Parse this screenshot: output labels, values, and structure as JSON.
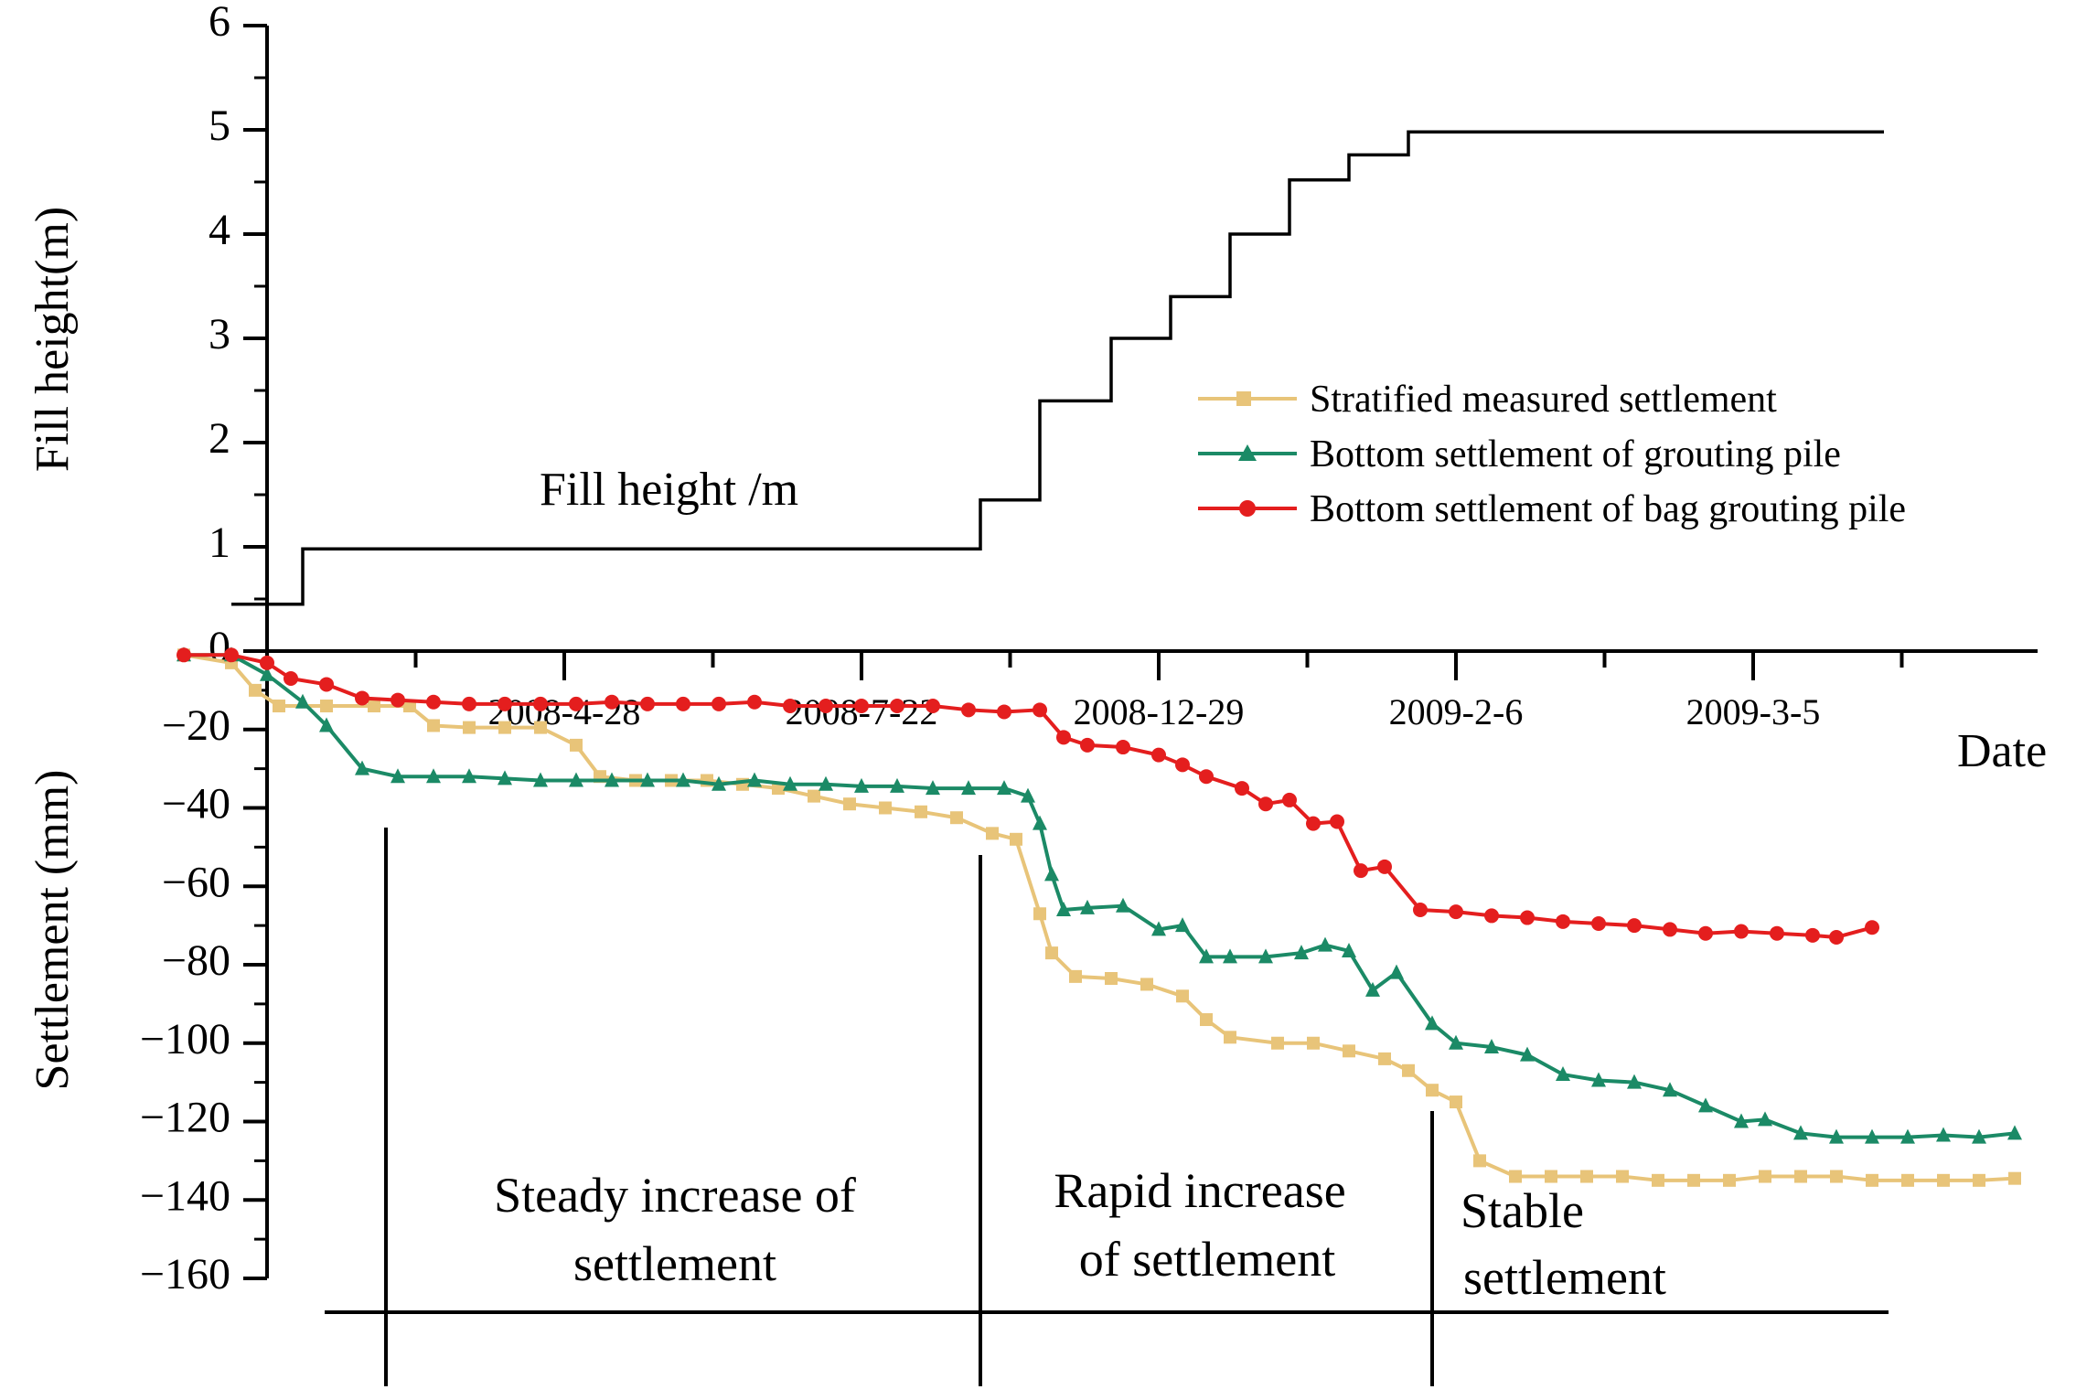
{
  "chart_data": [
    {
      "type": "line",
      "id": "fill",
      "title": "",
      "ylabel": "Fill height(m)",
      "annotation": "Fill height /m",
      "ylim": [
        0,
        6
      ],
      "yticks": [
        "0",
        "1",
        "2",
        "3",
        "4",
        "5",
        "6"
      ],
      "series": [
        {
          "name": "Fill height /m",
          "color": "#000000",
          "step": true,
          "points": [
            [
              -0.03,
              0.45
            ],
            [
              0.03,
              0.45
            ],
            [
              0.03,
              0.98
            ],
            [
              0.6,
              0.98
            ],
            [
              0.6,
              1.45
            ],
            [
              0.65,
              1.45
            ],
            [
              0.65,
              2.4
            ],
            [
              0.71,
              2.4
            ],
            [
              0.71,
              3.0
            ],
            [
              0.76,
              3.0
            ],
            [
              0.76,
              3.4
            ],
            [
              0.81,
              3.4
            ],
            [
              0.81,
              4.0
            ],
            [
              0.86,
              4.0
            ],
            [
              0.86,
              4.52
            ],
            [
              0.91,
              4.52
            ],
            [
              0.91,
              4.76
            ],
            [
              0.96,
              4.76
            ],
            [
              0.96,
              4.98
            ],
            [
              1.03,
              4.98
            ],
            [
              1.36,
              4.98
            ]
          ]
        }
      ]
    },
    {
      "type": "line",
      "id": "settlement",
      "title": "",
      "ylabel": "Settlement (mm)",
      "xlabel": "Date",
      "ylim": [
        -160,
        0
      ],
      "yticks": [
        "0",
        "−20",
        "−40",
        "−60",
        "−80",
        "−100",
        "−120",
        "−140",
        "−160"
      ],
      "xticks": [
        "2008-4-28",
        "2008-7-22",
        "2008-12-29",
        "2009-2-6",
        "2009-3-5"
      ],
      "xtick_positions": [
        0.25,
        0.5,
        0.75,
        1.0,
        1.25
      ],
      "legend": {
        "position": "top-right"
      },
      "series": [
        {
          "name": "Stratified measured settlement",
          "color": "#e8c479",
          "marker": "square",
          "points": [
            [
              -0.07,
              -1
            ],
            [
              -0.03,
              -3
            ],
            [
              -0.01,
              -10
            ],
            [
              0.01,
              -14
            ],
            [
              0.05,
              -14
            ],
            [
              0.09,
              -14
            ],
            [
              0.12,
              -14
            ],
            [
              0.14,
              -19
            ],
            [
              0.17,
              -19.5
            ],
            [
              0.2,
              -19.5
            ],
            [
              0.23,
              -19.5
            ],
            [
              0.26,
              -24
            ],
            [
              0.28,
              -32
            ],
            [
              0.31,
              -33
            ],
            [
              0.34,
              -33
            ],
            [
              0.37,
              -33
            ],
            [
              0.4,
              -34
            ],
            [
              0.43,
              -35
            ],
            [
              0.46,
              -37
            ],
            [
              0.49,
              -39
            ],
            [
              0.52,
              -40
            ],
            [
              0.55,
              -41
            ],
            [
              0.58,
              -42.5
            ],
            [
              0.61,
              -46.5
            ],
            [
              0.63,
              -48
            ],
            [
              0.65,
              -67
            ],
            [
              0.66,
              -77
            ],
            [
              0.68,
              -83
            ],
            [
              0.71,
              -83.5
            ],
            [
              0.74,
              -85
            ],
            [
              0.77,
              -88
            ],
            [
              0.79,
              -94
            ],
            [
              0.81,
              -98.5
            ],
            [
              0.85,
              -100
            ],
            [
              0.88,
              -100
            ],
            [
              0.91,
              -102
            ],
            [
              0.94,
              -104
            ],
            [
              0.96,
              -107
            ],
            [
              0.98,
              -112
            ],
            [
              1.0,
              -115
            ],
            [
              1.02,
              -130
            ],
            [
              1.05,
              -134
            ],
            [
              1.08,
              -134
            ],
            [
              1.11,
              -134
            ],
            [
              1.14,
              -134
            ],
            [
              1.17,
              -135
            ],
            [
              1.2,
              -135
            ],
            [
              1.23,
              -135
            ],
            [
              1.26,
              -134
            ],
            [
              1.29,
              -134
            ],
            [
              1.32,
              -134
            ],
            [
              1.35,
              -135
            ],
            [
              1.38,
              -135
            ],
            [
              1.41,
              -135
            ],
            [
              1.44,
              -135
            ],
            [
              1.47,
              -134.5
            ]
          ]
        },
        {
          "name": "Bottom settlement of grouting pile",
          "color": "#1b8a66",
          "marker": "triangle",
          "points": [
            [
              -0.07,
              -1
            ],
            [
              -0.03,
              -1
            ],
            [
              0.0,
              -6
            ],
            [
              0.03,
              -13
            ],
            [
              0.05,
              -19
            ],
            [
              0.08,
              -30
            ],
            [
              0.11,
              -32
            ],
            [
              0.14,
              -32
            ],
            [
              0.17,
              -32
            ],
            [
              0.2,
              -32.5
            ],
            [
              0.23,
              -33
            ],
            [
              0.26,
              -33
            ],
            [
              0.29,
              -33
            ],
            [
              0.32,
              -33
            ],
            [
              0.35,
              -33
            ],
            [
              0.38,
              -34
            ],
            [
              0.41,
              -33
            ],
            [
              0.44,
              -34
            ],
            [
              0.47,
              -34
            ],
            [
              0.5,
              -34.5
            ],
            [
              0.53,
              -34.5
            ],
            [
              0.56,
              -35
            ],
            [
              0.59,
              -35
            ],
            [
              0.62,
              -35
            ],
            [
              0.64,
              -37
            ],
            [
              0.65,
              -44
            ],
            [
              0.66,
              -57
            ],
            [
              0.67,
              -66
            ],
            [
              0.69,
              -65.5
            ],
            [
              0.72,
              -65
            ],
            [
              0.75,
              -71
            ],
            [
              0.77,
              -70
            ],
            [
              0.79,
              -78
            ],
            [
              0.81,
              -78
            ],
            [
              0.84,
              -78
            ],
            [
              0.87,
              -77
            ],
            [
              0.89,
              -75
            ],
            [
              0.91,
              -76.5
            ],
            [
              0.93,
              -86.5
            ],
            [
              0.95,
              -82
            ],
            [
              0.98,
              -95
            ],
            [
              1.0,
              -100
            ],
            [
              1.03,
              -101
            ],
            [
              1.06,
              -103
            ],
            [
              1.09,
              -108
            ],
            [
              1.12,
              -109.5
            ],
            [
              1.15,
              -110
            ],
            [
              1.18,
              -112
            ],
            [
              1.21,
              -116
            ],
            [
              1.24,
              -120
            ],
            [
              1.26,
              -119.5
            ],
            [
              1.29,
              -123
            ],
            [
              1.32,
              -124
            ],
            [
              1.35,
              -124
            ],
            [
              1.38,
              -124
            ],
            [
              1.41,
              -123.5
            ],
            [
              1.44,
              -124
            ],
            [
              1.47,
              -123
            ]
          ]
        },
        {
          "name": "Bottom settlement of bag grouting pile",
          "color": "#e41e1e",
          "marker": "circle",
          "points": [
            [
              -0.07,
              -1
            ],
            [
              -0.03,
              -1
            ],
            [
              0.0,
              -3
            ],
            [
              0.02,
              -7
            ],
            [
              0.05,
              -8.5
            ],
            [
              0.08,
              -12
            ],
            [
              0.11,
              -12.5
            ],
            [
              0.14,
              -13
            ],
            [
              0.17,
              -13.5
            ],
            [
              0.2,
              -13.5
            ],
            [
              0.23,
              -13.5
            ],
            [
              0.26,
              -13.5
            ],
            [
              0.29,
              -13
            ],
            [
              0.32,
              -13.5
            ],
            [
              0.35,
              -13.5
            ],
            [
              0.38,
              -13.5
            ],
            [
              0.41,
              -13
            ],
            [
              0.44,
              -14
            ],
            [
              0.47,
              -14
            ],
            [
              0.5,
              -14
            ],
            [
              0.53,
              -14
            ],
            [
              0.56,
              -14
            ],
            [
              0.59,
              -15
            ],
            [
              0.62,
              -15.5
            ],
            [
              0.65,
              -15
            ],
            [
              0.67,
              -22
            ],
            [
              0.69,
              -24
            ],
            [
              0.72,
              -24.5
            ],
            [
              0.75,
              -26.5
            ],
            [
              0.77,
              -29
            ],
            [
              0.79,
              -32
            ],
            [
              0.82,
              -35
            ],
            [
              0.84,
              -39
            ],
            [
              0.86,
              -38
            ],
            [
              0.88,
              -44
            ],
            [
              0.9,
              -43.5
            ],
            [
              0.92,
              -56
            ],
            [
              0.94,
              -55
            ],
            [
              0.97,
              -66
            ],
            [
              1.0,
              -66.5
            ],
            [
              1.03,
              -67.5
            ],
            [
              1.06,
              -68
            ],
            [
              1.09,
              -69
            ],
            [
              1.12,
              -69.5
            ],
            [
              1.15,
              -70
            ],
            [
              1.18,
              -71
            ],
            [
              1.21,
              -72
            ],
            [
              1.24,
              -71.5
            ],
            [
              1.27,
              -72
            ],
            [
              1.3,
              -72.5
            ],
            [
              1.32,
              -73
            ],
            [
              1.35,
              -70.5
            ]
          ]
        }
      ],
      "phase_boundaries": [
        0.1,
        0.6,
        0.98
      ],
      "phases": [
        {
          "line1": "Steady increase of",
          "line2": "settlement"
        },
        {
          "line1": "Rapid increase",
          "line2": "of settlement"
        },
        {
          "line1": "Stable",
          "line2": "settlement"
        }
      ]
    }
  ]
}
